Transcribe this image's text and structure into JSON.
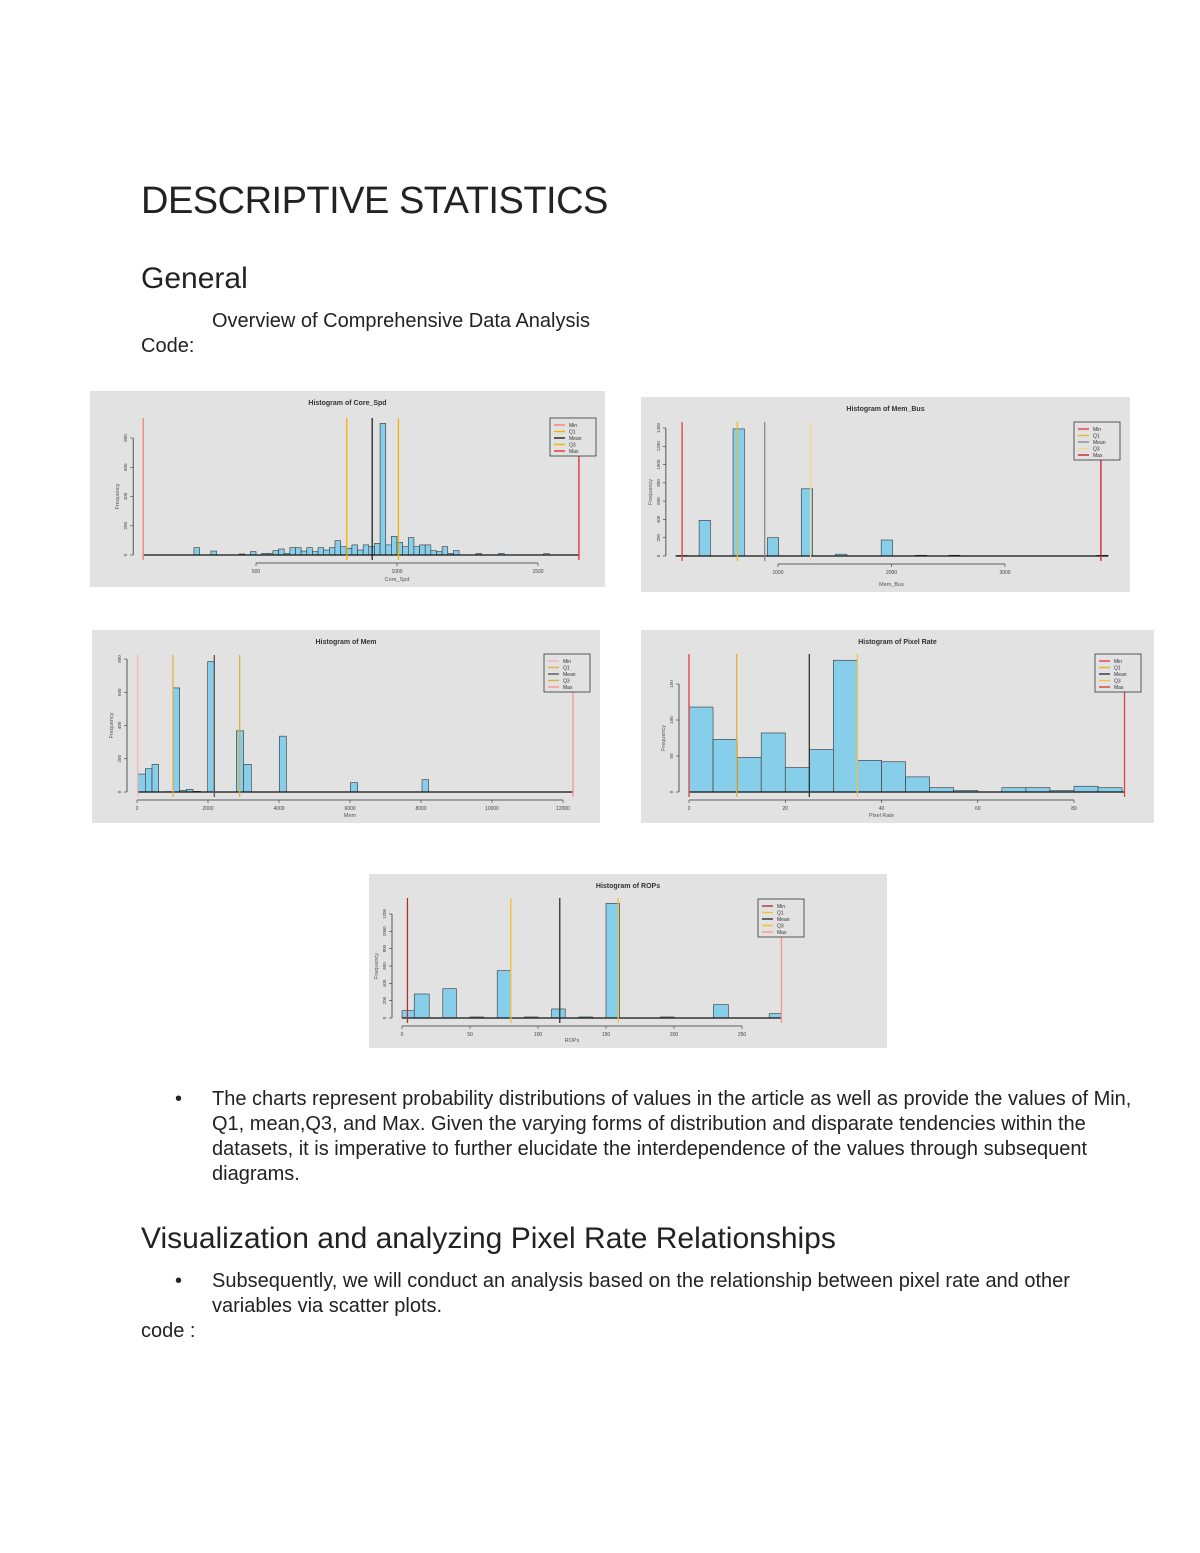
{
  "document": {
    "title": "DESCRIPTIVE STATISTICS",
    "section_general": "General",
    "overview": "Overview of Comprehensive Data Analysis",
    "code_label": "Code:",
    "bullet_symbol": "•",
    "bullet_1": "The charts represent probability distributions of values in the article as well as provide the values of Min, Q1, mean,Q3, and Max. Given the varying forms of distribution and disparate tendencies within the datasets, it is imperative to further elucidate the interdependence of the values through subsequent diagrams.",
    "section_visualization": "Visualization and analyzing Pixel Rate Relationships",
    "bullet_2": "Subsequently, we will conduct an analysis based on the relationship between pixel rate and other variables via scatter plots.",
    "code_label_2": "code :"
  },
  "colors": {
    "bar_fill": "#87ceeb",
    "bar_stroke": "#333333",
    "panel_bg": "#e2e2e2"
  },
  "chart_data": [
    {
      "type": "bar",
      "title": "Histogram of Core_Spd",
      "xlabel": "Core_Spd",
      "ylabel": "Frequency",
      "xticks": [
        500,
        1000,
        1500
      ],
      "yticks": [
        0,
        200,
        400,
        600,
        800
      ],
      "xlim": [
        500,
        1500
      ],
      "ylim": [
        0,
        800
      ],
      "bin_start": 280,
      "bin_width": 20,
      "counts": [
        50,
        0,
        0,
        27,
        0,
        0,
        0,
        0,
        7,
        0,
        23,
        0,
        11,
        11,
        30,
        41,
        11,
        50,
        50,
        27,
        50,
        23,
        50,
        34,
        50,
        98,
        57,
        46,
        69,
        34,
        69,
        57,
        80,
        900,
        69,
        128,
        87,
        57,
        119,
        57,
        69,
        69,
        30,
        23,
        57,
        11,
        30,
        0,
        0,
        0,
        11,
        0,
        0,
        0,
        11,
        0,
        0,
        0,
        0,
        0,
        0,
        0,
        9
      ],
      "lines": [
        {
          "label": "Min",
          "value": 100,
          "color": "#f08080"
        },
        {
          "label": "Q1",
          "value": 822,
          "color": "#f5b400"
        },
        {
          "label": "Mean",
          "value": 912,
          "color": "#222222"
        },
        {
          "label": "Q3",
          "value": 1005,
          "color": "#f5b400"
        },
        {
          "label": "Max",
          "value": 1645,
          "color": "#e03030"
        }
      ],
      "legend_position": "top-right"
    },
    {
      "type": "bar",
      "title": "Histogram of Mem_Bus",
      "xlabel": "Mem_Bus",
      "ylabel": "Frequency",
      "xticks": [
        1000,
        2000,
        3000
      ],
      "yticks": [
        0,
        200,
        400,
        600,
        800,
        1000,
        1200,
        1400
      ],
      "xlim": [
        1000,
        3000
      ],
      "ylim": [
        0,
        1400
      ],
      "bins": [
        [
          100,
          200,
          5
        ],
        [
          305,
          405,
          390
        ],
        [
          604,
          704,
          1390
        ],
        [
          906,
          1006,
          200
        ],
        [
          1205,
          1305,
          735
        ],
        [
          1507,
          1607,
          20
        ],
        [
          1909,
          2009,
          175
        ],
        [
          2211,
          2311,
          8
        ],
        [
          2504,
          2604,
          8
        ],
        [
          3809,
          3909,
          8
        ]
      ],
      "lines": [
        {
          "label": "Min",
          "value": 155,
          "color": "#e04040"
        },
        {
          "label": "Q1",
          "value": 642,
          "color": "#e8b830"
        },
        {
          "label": "Mean",
          "value": 883,
          "color": "#888888"
        },
        {
          "label": "Q3",
          "value": 1287,
          "color": "#f5d58a"
        },
        {
          "label": "Max",
          "value": 3845,
          "color": "#cc2020"
        }
      ],
      "legend_position": "top-right"
    },
    {
      "type": "bar",
      "title": "Histogram of Mem",
      "xlabel": "Mem",
      "ylabel": "Frequency",
      "xticks": [
        0,
        2000,
        4000,
        6000,
        8000,
        10000,
        12000
      ],
      "yticks": [
        0,
        200,
        400,
        600,
        800
      ],
      "xlim": [
        0,
        12000
      ],
      "ylim": [
        0,
        800
      ],
      "bins": [
        [
          19,
          235,
          108
        ],
        [
          235,
          423,
          140
        ],
        [
          423,
          610,
          166
        ],
        [
          798,
          1014,
          2
        ],
        [
          1014,
          1202,
          626
        ],
        [
          1202,
          1390,
          10
        ],
        [
          1390,
          1577,
          16
        ],
        [
          1577,
          1784,
          4
        ],
        [
          1991,
          2178,
          784
        ],
        [
          2798,
          3005,
          368
        ],
        [
          3005,
          3221,
          166
        ],
        [
          4009,
          4207,
          336
        ],
        [
          6009,
          6216,
          56
        ],
        [
          8028,
          8216,
          74
        ]
      ],
      "lines": [
        {
          "label": "Min",
          "value": 20,
          "color": "#ffb0b0"
        },
        {
          "label": "Q1",
          "value": 1014,
          "color": "#e0b040"
        },
        {
          "label": "Mean",
          "value": 2178,
          "color": "#555555"
        },
        {
          "label": "Q3",
          "value": 2892,
          "color": "#e0b040"
        },
        {
          "label": "Max",
          "value": 12282,
          "color": "#ff9090"
        }
      ],
      "legend_position": "top-right"
    },
    {
      "type": "bar",
      "title": "Histogram of Pixel Rate",
      "xlabel": "Pixel Rate",
      "ylabel": "Frequency",
      "xticks": [
        0,
        20,
        40,
        60,
        80
      ],
      "yticks": [
        0,
        50,
        100,
        150
      ],
      "xlim": [
        0,
        80
      ],
      "ylim": [
        0,
        150
      ],
      "bin_start": 0,
      "bin_width": 5,
      "counts": [
        118,
        73,
        48,
        82,
        34,
        59,
        183,
        44,
        42,
        21,
        6,
        2,
        0,
        6,
        6,
        2,
        8,
        6
      ],
      "lines": [
        {
          "label": "Min",
          "value": 0,
          "color": "#e04040"
        },
        {
          "label": "Q1",
          "value": 9.9,
          "color": "#e8b030"
        },
        {
          "label": "Mean",
          "value": 25,
          "color": "#333333"
        },
        {
          "label": "Q3",
          "value": 35,
          "color": "#f0c040"
        },
        {
          "label": "Max",
          "value": 90.5,
          "color": "#e04040"
        }
      ],
      "legend_position": "top-right"
    },
    {
      "type": "bar",
      "title": "Histogram of ROPs",
      "xlabel": "ROPs",
      "ylabel": "Frequency",
      "xticks": [
        0,
        50,
        100,
        150,
        200,
        250
      ],
      "yticks": [
        0,
        200,
        400,
        600,
        800,
        1000,
        1200
      ],
      "xlim": [
        0,
        250
      ],
      "ylim": [
        0,
        1200
      ],
      "bins": [
        [
          0,
          9,
          85
        ],
        [
          9,
          20,
          277
        ],
        [
          30,
          40,
          338
        ],
        [
          50,
          60,
          12
        ],
        [
          70,
          80,
          546
        ],
        [
          90,
          100,
          12
        ],
        [
          110,
          120,
          104
        ],
        [
          130,
          140,
          12
        ],
        [
          150,
          160,
          1323
        ],
        [
          190,
          200,
          12
        ],
        [
          229,
          240,
          154
        ],
        [
          270,
          279,
          50
        ]
      ],
      "lines": [
        {
          "label": "Min",
          "value": 4,
          "color": "#b03030"
        },
        {
          "label": "Q1",
          "value": 80,
          "color": "#f5c030"
        },
        {
          "label": "Mean",
          "value": 116,
          "color": "#333333"
        },
        {
          "label": "Q3",
          "value": 159,
          "color": "#f5c030"
        },
        {
          "label": "Max",
          "value": 279,
          "color": "#ff9090"
        }
      ],
      "legend_position": "top-right"
    }
  ]
}
